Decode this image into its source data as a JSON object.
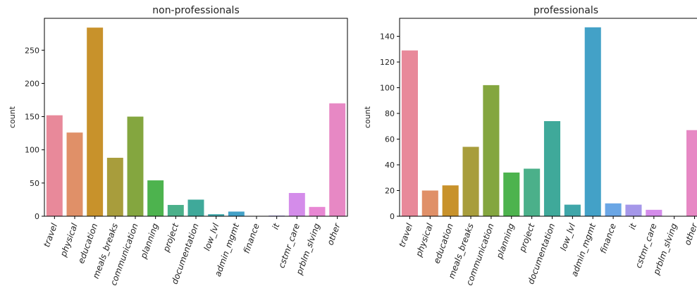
{
  "chart_data": [
    {
      "type": "bar",
      "title": "non-professionals",
      "xlabel": "",
      "ylabel": "count",
      "ylim": [
        0,
        298
      ],
      "yticks": [
        0,
        50,
        100,
        150,
        200,
        250
      ],
      "categories": [
        "travel",
        "physical",
        "education",
        "meals_breaks",
        "communication",
        "planning",
        "project",
        "documentation",
        "low_lvl",
        "admin_mgmt",
        "finance",
        "it",
        "cstmr_care",
        "prblm_slving",
        "other"
      ],
      "values": [
        152,
        126,
        284,
        88,
        150,
        54,
        17,
        25,
        3,
        7,
        0,
        1,
        35,
        14,
        170
      ],
      "colors": [
        "#e8899a",
        "#e09068",
        "#c8922b",
        "#a89d3c",
        "#84a63f",
        "#4db34e",
        "#4bb08a",
        "#3fa99a",
        "#3fa6a9",
        "#43a1c7",
        "#6aa6e5",
        "#a597e9",
        "#d48cea",
        "#e887d3",
        "#e788c4"
      ]
    },
    {
      "type": "bar",
      "title": "professionals",
      "xlabel": "",
      "ylabel": "count",
      "ylim": [
        0,
        154
      ],
      "yticks": [
        0,
        20,
        40,
        60,
        80,
        100,
        120,
        140
      ],
      "categories": [
        "travel",
        "physical",
        "education",
        "meals_breaks",
        "communication",
        "planning",
        "project",
        "documentation",
        "low_lvl",
        "admin_mgmt",
        "finance",
        "it",
        "cstmr_care",
        "prblm_slving",
        "other"
      ],
      "values": [
        129,
        20,
        24,
        54,
        102,
        34,
        37,
        74,
        9,
        147,
        10,
        9,
        5,
        0,
        67
      ],
      "colors": [
        "#e8899a",
        "#e09068",
        "#c8922b",
        "#a89d3c",
        "#84a63f",
        "#4db34e",
        "#4bb08a",
        "#3fa99a",
        "#3fa6a9",
        "#43a1c7",
        "#6aa6e5",
        "#a597e9",
        "#d48cea",
        "#e887d3",
        "#e788c4"
      ]
    }
  ]
}
